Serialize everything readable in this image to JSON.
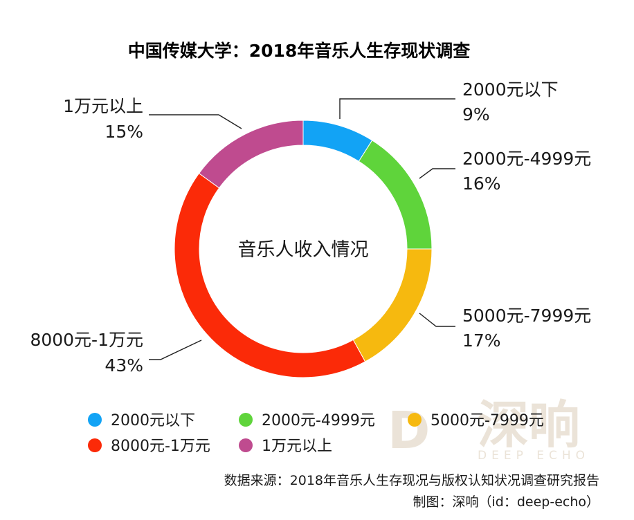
{
  "chart_data": {
    "type": "pie",
    "title": "中国传媒大学：2018年音乐人生存现状调查",
    "center_label": "音乐人收入情况",
    "slices": [
      {
        "label": "2000元以下",
        "value": 9,
        "value_label": "9%",
        "color": "#12a3f5"
      },
      {
        "label": "2000元-4999元",
        "value": 16,
        "value_label": "16%",
        "color": "#5fd43b"
      },
      {
        "label": "5000元-7999元",
        "value": 17,
        "value_label": "17%",
        "color": "#f6b90f"
      },
      {
        "label": "8000元-1万元",
        "value": 43,
        "value_label": "43%",
        "color": "#fb2a08"
      },
      {
        "label": "1万元以上",
        "value": 15,
        "value_label": "15%",
        "color": "#bf4b8f"
      }
    ],
    "legend": [
      {
        "label": "2000元以下"
      },
      {
        "label": "2000元-4999元"
      },
      {
        "label": "5000元-7999元"
      },
      {
        "label": "8000元-1万元"
      },
      {
        "label": "1万元以上"
      }
    ]
  },
  "footer": {
    "source": "数据来源：2018年音乐人生存现况与版权认知状况调查研究报告",
    "credit": "制图：深响（id：deep-echo）"
  },
  "watermark": {
    "letter": "D",
    "chinese": "深响",
    "english": "DEEP ECHO"
  }
}
